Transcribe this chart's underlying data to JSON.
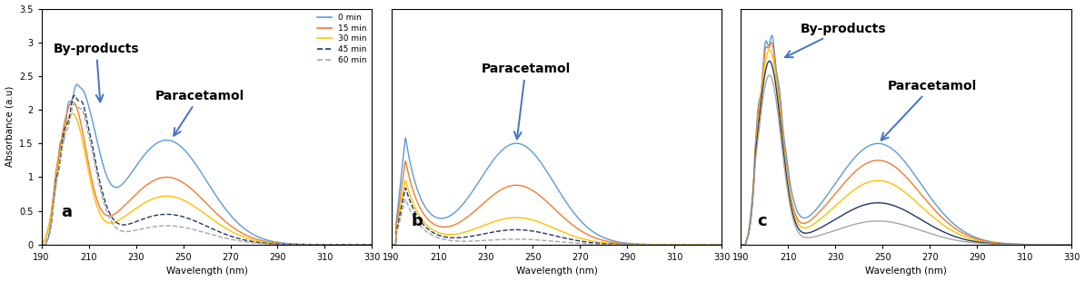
{
  "wavelength_range": [
    190,
    330
  ],
  "xlim": [
    190,
    330
  ],
  "ylim_a": [
    0,
    3.5
  ],
  "ylim_bc": [
    0,
    3.5
  ],
  "xticks": [
    190,
    210,
    230,
    250,
    270,
    290,
    310,
    330
  ],
  "yticks_a": [
    0,
    0.5,
    1,
    1.5,
    2,
    2.5,
    3,
    3.5
  ],
  "xlabel": "Wavelength (nm)",
  "ylabel_a": "Absorbance (a.u)",
  "legend_labels": [
    "0 min",
    "15 min",
    "30 min",
    "45 min",
    "60 min"
  ],
  "colors": [
    "#5B9BD5",
    "#ED7D31",
    "#FFC000",
    "#203864",
    "#A5A5A5"
  ],
  "linestyles": [
    "-",
    "-",
    "-",
    "--",
    "--"
  ],
  "linewidths": [
    1.0,
    1.0,
    1.0,
    1.0,
    1.0
  ],
  "panel_labels": [
    "a",
    "b",
    "c"
  ],
  "arrow_color": "#4472C4",
  "annotation_fontsize": 10,
  "panel_label_fontsize": 13
}
